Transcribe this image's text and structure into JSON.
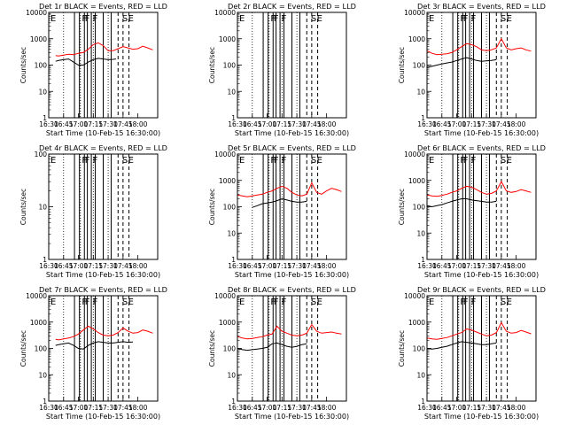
{
  "figure": {
    "xlabel": "Start Time (10-Feb-15 16:30:00)",
    "ylabel": "Counts/sec",
    "x_ticks": [
      "16:30",
      "16:45",
      "17:00",
      "17:15",
      "17:30",
      "17:45",
      "18:00"
    ],
    "colors": {
      "events": "#000000",
      "lld": "#ff0000",
      "axes": "#000000"
    },
    "attenuator_marks": [
      "F",
      "F",
      "F",
      "S",
      "E"
    ]
  },
  "chart_data": [
    {
      "type": "line",
      "title": "Det 1r BLACK = Events, RED = LLD",
      "yscale": "log",
      "ylim": [
        1,
        10000
      ],
      "y_ticks": [
        "1",
        "10",
        "100",
        "1000",
        "10000"
      ],
      "xlim": [
        "16:30",
        "18:20"
      ],
      "grid": false,
      "top_left_mark": "E",
      "solid_lines": [
        "16:56",
        "17:01",
        "17:06",
        "17:09",
        "17:13",
        "17:17",
        "17:25",
        "17:33"
      ],
      "dashed_lines": [
        "17:40",
        "17:45",
        "17:51"
      ],
      "dotted_lines": [
        "16:45",
        "17:02",
        "17:15",
        "17:30"
      ],
      "series": [
        {
          "name": "BLACK = Events",
          "color": "#000000",
          "x": [
            "16:37",
            "16:40",
            "16:45",
            "16:50",
            "16:55",
            "17:00",
            "17:05",
            "17:10",
            "17:15",
            "17:20",
            "17:25",
            "17:30",
            "17:35",
            "17:38"
          ],
          "y": [
            140,
            150,
            160,
            170,
            130,
            100,
            100,
            130,
            160,
            180,
            170,
            160,
            165,
            170
          ]
        },
        {
          "name": "RED = LLD",
          "color": "#ff0000",
          "x": [
            "16:37",
            "16:40",
            "16:45",
            "16:50",
            "16:55",
            "17:00",
            "17:05",
            "17:10",
            "17:15",
            "17:20",
            "17:25",
            "17:30",
            "17:35",
            "17:40",
            "17:45",
            "17:50",
            "17:55",
            "18:00",
            "18:05",
            "18:10",
            "18:15"
          ],
          "y": [
            230,
            220,
            240,
            260,
            250,
            280,
            300,
            400,
            600,
            700,
            550,
            350,
            350,
            420,
            500,
            450,
            400,
            420,
            520,
            450,
            380
          ]
        }
      ]
    },
    {
      "type": "line",
      "title": "Det 2r BLACK = Events, RED = LLD",
      "yscale": "log",
      "ylim": [
        1,
        10000
      ],
      "y_ticks": [
        "1",
        "10",
        "100",
        "1000",
        "10000"
      ],
      "xlim": [
        "16:30",
        "18:20"
      ],
      "grid": false,
      "top_left_mark": "E",
      "solid_lines": [
        "16:56",
        "17:01",
        "17:06",
        "17:09",
        "17:13",
        "17:17",
        "17:25",
        "17:33"
      ],
      "dashed_lines": [
        "17:40",
        "17:45",
        "17:51"
      ],
      "dotted_lines": [
        "16:45",
        "17:02",
        "17:15",
        "17:30"
      ],
      "series": [
        {
          "name": "BLACK = Events",
          "color": "#000000",
          "x": [],
          "y": []
        },
        {
          "name": "RED = LLD",
          "color": "#ff0000",
          "x": [],
          "y": []
        }
      ]
    },
    {
      "type": "line",
      "title": "Det 3r BLACK = Events, RED = LLD",
      "yscale": "log",
      "ylim": [
        1,
        10000
      ],
      "y_ticks": [
        "1",
        "10",
        "100",
        "1000",
        "10000"
      ],
      "xlim": [
        "16:30",
        "18:20"
      ],
      "grid": false,
      "top_left_mark": "E",
      "solid_lines": [
        "16:56",
        "17:01",
        "17:06",
        "17:09",
        "17:13",
        "17:17",
        "17:25",
        "17:33"
      ],
      "dashed_lines": [
        "17:40",
        "17:45",
        "17:51"
      ],
      "dotted_lines": [
        "16:45",
        "17:02",
        "17:15",
        "17:30"
      ],
      "series": [
        {
          "name": "BLACK = Events",
          "color": "#000000",
          "x": [
            "16:30",
            "16:35",
            "16:40",
            "16:45",
            "16:50",
            "16:55",
            "17:00",
            "17:05",
            "17:10",
            "17:15",
            "17:20",
            "17:25",
            "17:30",
            "17:35",
            "17:40"
          ],
          "y": [
            80,
            90,
            100,
            110,
            120,
            130,
            150,
            170,
            190,
            170,
            150,
            140,
            145,
            150,
            160
          ]
        },
        {
          "name": "RED = LLD",
          "color": "#ff0000",
          "x": [
            "16:30",
            "16:35",
            "16:40",
            "16:45",
            "16:50",
            "16:55",
            "17:00",
            "17:05",
            "17:10",
            "17:15",
            "17:20",
            "17:25",
            "17:30",
            "17:35",
            "17:40",
            "17:45",
            "17:50",
            "17:55",
            "18:00",
            "18:05",
            "18:10",
            "18:15"
          ],
          "y": [
            350,
            280,
            250,
            260,
            270,
            300,
            380,
            500,
            650,
            600,
            500,
            380,
            350,
            380,
            450,
            1000,
            450,
            380,
            420,
            450,
            380,
            340
          ]
        }
      ]
    },
    {
      "type": "line",
      "title": "Det 4r BLACK = Events, RED = LLD",
      "yscale": "log",
      "ylim": [
        1,
        100
      ],
      "y_ticks": [
        "1",
        "10",
        "100"
      ],
      "xlim": [
        "16:30",
        "18:20"
      ],
      "grid": false,
      "top_left_mark": "E",
      "solid_lines": [
        "16:56",
        "17:01",
        "17:06",
        "17:09",
        "17:13",
        "17:17",
        "17:25",
        "17:33"
      ],
      "dashed_lines": [
        "17:40",
        "17:45",
        "17:51"
      ],
      "dotted_lines": [
        "16:45",
        "17:02",
        "17:15",
        "17:30"
      ],
      "series": [
        {
          "name": "BLACK = Events",
          "color": "#000000",
          "x": [],
          "y": []
        },
        {
          "name": "RED = LLD",
          "color": "#ff0000",
          "x": [],
          "y": []
        }
      ]
    },
    {
      "type": "line",
      "title": "Det 5r BLACK = Events, RED = LLD",
      "yscale": "log",
      "ylim": [
        1,
        10000
      ],
      "y_ticks": [
        "1",
        "10",
        "100",
        "1000",
        "10000"
      ],
      "xlim": [
        "16:30",
        "18:20"
      ],
      "grid": false,
      "top_left_mark": "E",
      "solid_lines": [
        "16:56",
        "17:01",
        "17:06",
        "17:09",
        "17:13",
        "17:17",
        "17:25",
        "17:33"
      ],
      "dashed_lines": [
        "17:40",
        "17:45",
        "17:51"
      ],
      "dotted_lines": [
        "16:45",
        "17:02",
        "17:15",
        "17:30"
      ],
      "series": [
        {
          "name": "BLACK = Events",
          "color": "#000000",
          "x": [
            "16:45",
            "16:50",
            "16:55",
            "17:00",
            "17:05",
            "17:10",
            "17:15",
            "17:20",
            "17:25",
            "17:30",
            "17:35",
            "17:40"
          ],
          "y": [
            95,
            110,
            130,
            140,
            150,
            170,
            200,
            180,
            160,
            150,
            150,
            160
          ]
        },
        {
          "name": "RED = LLD",
          "color": "#ff0000",
          "x": [
            "16:30",
            "16:35",
            "16:40",
            "16:45",
            "16:50",
            "16:55",
            "17:00",
            "17:05",
            "17:10",
            "17:15",
            "17:20",
            "17:25",
            "17:30",
            "17:35",
            "17:40",
            "17:45",
            "17:50",
            "17:55",
            "18:00",
            "18:05",
            "18:10",
            "18:15"
          ],
          "y": [
            280,
            260,
            240,
            260,
            280,
            300,
            350,
            400,
            500,
            600,
            500,
            350,
            280,
            260,
            300,
            800,
            350,
            300,
            400,
            500,
            450,
            380
          ]
        }
      ]
    },
    {
      "type": "line",
      "title": "Det 6r BLACK = Events, RED = LLD",
      "yscale": "log",
      "ylim": [
        1,
        10000
      ],
      "y_ticks": [
        "1",
        "10",
        "100",
        "1000",
        "10000"
      ],
      "xlim": [
        "16:30",
        "18:20"
      ],
      "grid": false,
      "top_left_mark": "E",
      "solid_lines": [
        "16:56",
        "17:01",
        "17:06",
        "17:09",
        "17:13",
        "17:17",
        "17:25",
        "17:33"
      ],
      "dashed_lines": [
        "17:40",
        "17:45",
        "17:51"
      ],
      "dotted_lines": [
        "16:45",
        "17:02",
        "17:15",
        "17:30"
      ],
      "series": [
        {
          "name": "BLACK = Events",
          "color": "#000000",
          "x": [
            "16:30",
            "16:35",
            "16:40",
            "16:45",
            "16:50",
            "16:55",
            "17:00",
            "17:05",
            "17:10",
            "17:15",
            "17:20",
            "17:25",
            "17:30",
            "17:35",
            "17:40"
          ],
          "y": [
            110,
            100,
            110,
            120,
            140,
            160,
            180,
            200,
            200,
            180,
            170,
            160,
            150,
            150,
            160
          ]
        },
        {
          "name": "RED = LLD",
          "color": "#ff0000",
          "x": [
            "16:30",
            "16:35",
            "16:40",
            "16:45",
            "16:50",
            "16:55",
            "17:00",
            "17:05",
            "17:10",
            "17:15",
            "17:20",
            "17:25",
            "17:30",
            "17:35",
            "17:40",
            "17:45",
            "17:50",
            "17:55",
            "18:00",
            "18:05",
            "18:10",
            "18:15"
          ],
          "y": [
            280,
            260,
            250,
            270,
            300,
            350,
            400,
            500,
            600,
            550,
            450,
            350,
            300,
            320,
            400,
            900,
            400,
            350,
            380,
            450,
            400,
            350
          ]
        }
      ]
    },
    {
      "type": "line",
      "title": "Det 7r BLACK = Events, RED = LLD",
      "yscale": "log",
      "ylim": [
        1,
        10000
      ],
      "y_ticks": [
        "1",
        "10",
        "100",
        "1000",
        "10000"
      ],
      "xlim": [
        "16:30",
        "18:20"
      ],
      "grid": false,
      "top_left_mark": "E",
      "solid_lines": [
        "16:56",
        "17:01",
        "17:06",
        "17:09",
        "17:13",
        "17:17",
        "17:25",
        "17:33"
      ],
      "dashed_lines": [
        "17:40",
        "17:45",
        "17:51"
      ],
      "dotted_lines": [
        "16:45",
        "17:02",
        "17:15",
        "17:30"
      ],
      "series": [
        {
          "name": "BLACK = Events",
          "color": "#000000",
          "x": [
            "16:37",
            "16:40",
            "16:45",
            "16:50",
            "16:55",
            "17:00",
            "17:05",
            "17:10",
            "17:15",
            "17:20",
            "17:25",
            "17:30",
            "17:35",
            "17:40",
            "17:45",
            "17:50",
            "17:55"
          ],
          "y": [
            130,
            140,
            150,
            160,
            130,
            100,
            95,
            130,
            160,
            180,
            170,
            160,
            160,
            170,
            180,
            170,
            175
          ]
        },
        {
          "name": "RED = LLD",
          "color": "#ff0000",
          "x": [
            "16:37",
            "16:40",
            "16:45",
            "16:50",
            "16:55",
            "17:00",
            "17:05",
            "17:10",
            "17:15",
            "17:20",
            "17:25",
            "17:30",
            "17:35",
            "17:40",
            "17:45",
            "17:50",
            "17:55",
            "18:00",
            "18:05",
            "18:10",
            "18:15"
          ],
          "y": [
            220,
            210,
            230,
            250,
            280,
            350,
            500,
            700,
            550,
            400,
            320,
            300,
            320,
            400,
            600,
            450,
            380,
            400,
            500,
            450,
            380
          ]
        }
      ]
    },
    {
      "type": "line",
      "title": "Det 8r BLACK = Events, RED = LLD",
      "yscale": "log",
      "ylim": [
        1,
        10000
      ],
      "y_ticks": [
        "1",
        "10",
        "100",
        "1000",
        "10000"
      ],
      "xlim": [
        "16:30",
        "18:20"
      ],
      "grid": false,
      "top_left_mark": "E",
      "solid_lines": [
        "16:56",
        "17:01",
        "17:06",
        "17:09",
        "17:13",
        "17:17",
        "17:25",
        "17:33"
      ],
      "dashed_lines": [
        "17:40",
        "17:45",
        "17:51"
      ],
      "dotted_lines": [
        "16:45",
        "17:02",
        "17:15",
        "17:30"
      ],
      "series": [
        {
          "name": "BLACK = Events",
          "color": "#000000",
          "x": [
            "16:30",
            "16:35",
            "16:40",
            "16:45",
            "16:50",
            "16:55",
            "17:00",
            "17:05",
            "17:10",
            "17:15",
            "17:20",
            "17:25",
            "17:30",
            "17:35",
            "17:40"
          ],
          "y": [
            100,
            90,
            85,
            90,
            95,
            100,
            110,
            150,
            160,
            140,
            120,
            110,
            120,
            140,
            150
          ]
        },
        {
          "name": "RED = LLD",
          "color": "#ff0000",
          "x": [
            "16:30",
            "16:35",
            "16:40",
            "16:45",
            "16:50",
            "16:55",
            "17:00",
            "17:05",
            "17:10",
            "17:15",
            "17:20",
            "17:25",
            "17:30",
            "17:35",
            "17:40",
            "17:45",
            "17:50",
            "17:55",
            "18:00",
            "18:05",
            "18:10",
            "18:15"
          ],
          "y": [
            280,
            250,
            230,
            240,
            260,
            280,
            320,
            350,
            700,
            450,
            380,
            320,
            300,
            320,
            380,
            800,
            450,
            380,
            400,
            420,
            380,
            350
          ]
        }
      ]
    },
    {
      "type": "line",
      "title": "Det 9r BLACK = Events, RED = LLD",
      "yscale": "log",
      "ylim": [
        1,
        10000
      ],
      "y_ticks": [
        "1",
        "10",
        "100",
        "1000",
        "10000"
      ],
      "xlim": [
        "16:30",
        "18:20"
      ],
      "grid": false,
      "top_left_mark": "E",
      "solid_lines": [
        "16:56",
        "17:01",
        "17:06",
        "17:09",
        "17:13",
        "17:17",
        "17:25",
        "17:33"
      ],
      "dashed_lines": [
        "17:40",
        "17:45",
        "17:51"
      ],
      "dotted_lines": [
        "16:45",
        "17:02",
        "17:15",
        "17:30"
      ],
      "series": [
        {
          "name": "BLACK = Events",
          "color": "#000000",
          "x": [
            "16:30",
            "16:35",
            "16:40",
            "16:45",
            "16:50",
            "16:55",
            "17:00",
            "17:05",
            "17:10",
            "17:15",
            "17:20",
            "17:25",
            "17:30",
            "17:35",
            "17:40"
          ],
          "y": [
            100,
            95,
            100,
            110,
            120,
            140,
            160,
            180,
            170,
            160,
            150,
            140,
            140,
            150,
            160
          ]
        },
        {
          "name": "RED = LLD",
          "color": "#ff0000",
          "x": [
            "16:30",
            "16:35",
            "16:40",
            "16:45",
            "16:50",
            "16:55",
            "17:00",
            "17:05",
            "17:10",
            "17:15",
            "17:20",
            "17:25",
            "17:30",
            "17:35",
            "17:40",
            "17:45",
            "17:50",
            "17:55",
            "18:00",
            "18:05",
            "18:10",
            "18:15"
          ],
          "y": [
            250,
            230,
            220,
            240,
            260,
            300,
            350,
            400,
            550,
            500,
            420,
            350,
            300,
            320,
            400,
            950,
            450,
            380,
            400,
            480,
            420,
            360
          ]
        }
      ]
    }
  ]
}
